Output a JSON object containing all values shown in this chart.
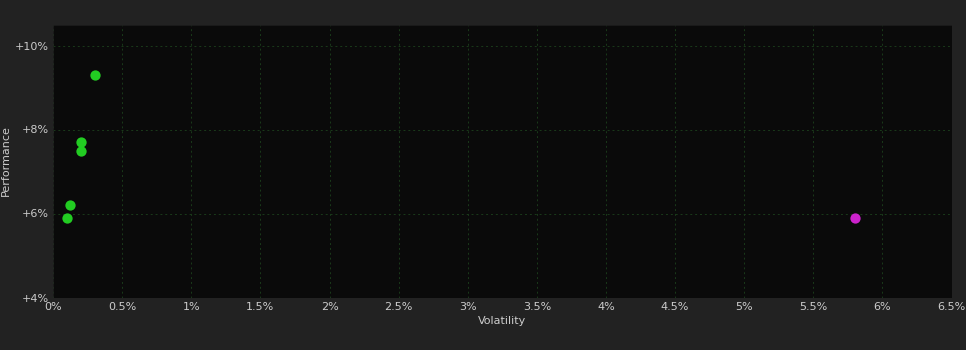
{
  "background_color": "#222222",
  "plot_bg_color": "#0a0a0a",
  "grid_color": "#1a3a1a",
  "xlabel": "Volatility",
  "ylabel": "Performance",
  "xlim": [
    0.0,
    0.065
  ],
  "ylim": [
    0.04,
    0.105
  ],
  "xtick_values": [
    0.0,
    0.005,
    0.01,
    0.015,
    0.02,
    0.025,
    0.03,
    0.035,
    0.04,
    0.045,
    0.05,
    0.055,
    0.06,
    0.065
  ],
  "xtick_labels": [
    "0%",
    "0.5%",
    "1%",
    "1.5%",
    "2%",
    "2.5%",
    "3%",
    "3.5%",
    "4%",
    "4.5%",
    "5%",
    "5.5%",
    "6%",
    "6.5%"
  ],
  "ytick_values": [
    0.04,
    0.06,
    0.08,
    0.1
  ],
  "ytick_labels": [
    "+4%",
    "+6%",
    "+8%",
    "+10%"
  ],
  "green_points": [
    [
      0.003,
      0.093
    ],
    [
      0.002,
      0.077
    ],
    [
      0.002,
      0.075
    ],
    [
      0.0012,
      0.062
    ],
    [
      0.001,
      0.059
    ]
  ],
  "magenta_points": [
    [
      0.058,
      0.059
    ]
  ],
  "green_color": "#22cc22",
  "magenta_color": "#cc22cc",
  "text_color": "#cccccc",
  "marker_size": 55,
  "font_size_axis": 8,
  "font_size_ticks": 8
}
